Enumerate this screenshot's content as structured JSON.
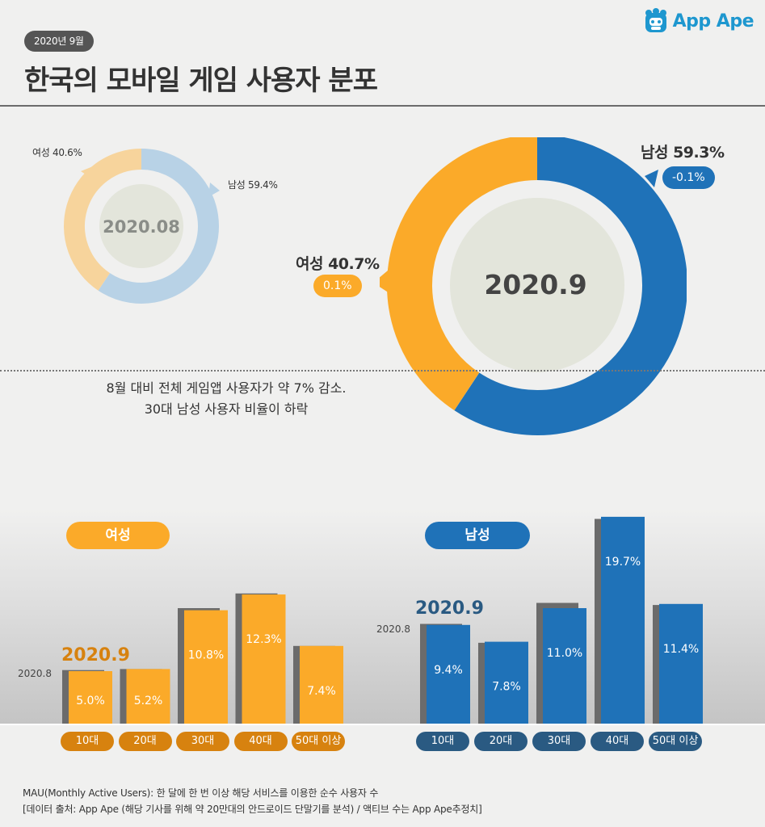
{
  "header": {
    "date_badge": "2020년 9월",
    "title": "한국의 모바일 게임 사용자 분포",
    "logo_text": "App Ape"
  },
  "donut_prev": {
    "center_label": "2020.08",
    "female_label": "여성 40.6%",
    "male_label": "남성 59.4%"
  },
  "donut_curr": {
    "center_label": "2020.9",
    "female_label": "여성 40.7%",
    "female_change": "0.1%",
    "male_label": "남성 59.3%",
    "male_change": "-0.1%"
  },
  "summary": {
    "line1": "8월 대비 전체 게임앱 사용자가 약 7% 감소.",
    "line2": "30대 남성 사용자 비율이 하락"
  },
  "bars": {
    "female_title": "여성",
    "male_title": "남성",
    "prev_label": "2020.8",
    "curr_label": "2020.9"
  },
  "colors": {
    "female": "#fbaa29",
    "female_dark": "#d7820f",
    "male": "#1f72b8",
    "male_dark": "#2a5a82",
    "prev_bar": "#6b6b6b",
    "female_light": "#f7d49c",
    "male_light": "#b8d2e6"
  },
  "chart_data": [
    {
      "type": "pie",
      "center_label": "2020.08",
      "slices": [
        {
          "label": "여성",
          "value": 40.6
        },
        {
          "label": "남성",
          "value": 59.4
        }
      ]
    },
    {
      "type": "pie",
      "center_label": "2020.9",
      "slices": [
        {
          "label": "여성",
          "value": 40.7,
          "change": "0.1%"
        },
        {
          "label": "남성",
          "value": 59.3,
          "change": "-0.1%"
        }
      ]
    },
    {
      "type": "bar",
      "title": "여성",
      "categories": [
        "10대",
        "20대",
        "30대",
        "40대",
        "50대 이상"
      ],
      "series": [
        {
          "name": "2020.8",
          "values": [
            5.1,
            5.2,
            11.0,
            12.4,
            7.4
          ]
        },
        {
          "name": "2020.9",
          "values": [
            5.0,
            5.2,
            10.8,
            12.3,
            7.4
          ]
        }
      ],
      "data_labels": [
        "5.0%",
        "5.2%",
        "10.8%",
        "12.3%",
        "7.4%"
      ]
    },
    {
      "type": "bar",
      "title": "남성",
      "categories": [
        "10대",
        "20대",
        "30대",
        "40대",
        "50대 이상"
      ],
      "series": [
        {
          "name": "2020.8",
          "values": [
            9.5,
            7.7,
            11.5,
            19.5,
            11.3
          ]
        },
        {
          "name": "2020.9",
          "values": [
            9.4,
            7.8,
            11.0,
            19.7,
            11.4
          ]
        }
      ],
      "data_labels": [
        "9.4%",
        "7.8%",
        "11.0%",
        "19.7%",
        "11.4%"
      ]
    }
  ],
  "footnote": {
    "line1": "MAU(Monthly Active Users):  한 달에 한 번 이상 해당 서비스를 이용한 순수 사용자 수",
    "line2": "[데이터 출처: App Ape (해당 기사를 위해 약 20만대의 안드로이드 단말기를 분석) / 액티브 수는 App Ape추정치]"
  }
}
